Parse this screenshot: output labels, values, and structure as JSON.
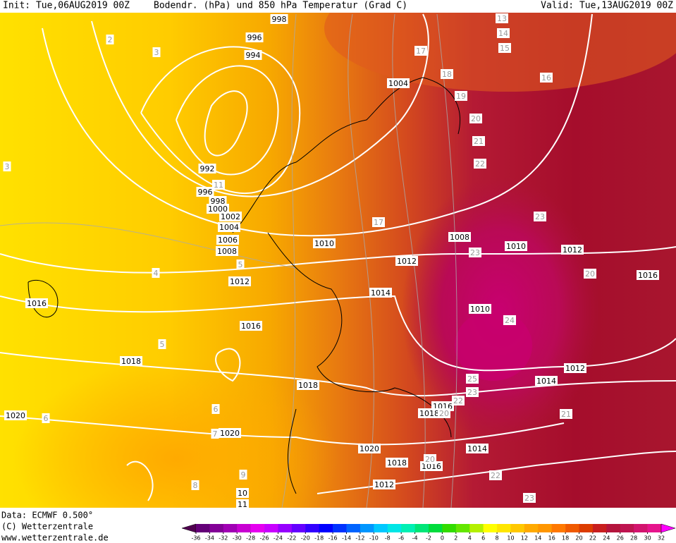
{
  "header": {
    "init": "Init: Tue,06AUG2019 00Z",
    "title": "Bodendr. (hPa) und 850 hPa Temperatur (Grad C)",
    "valid": "Valid: Tue,13AUG2019 00Z"
  },
  "isobar_labels": [
    998,
    996,
    994,
    1004,
    992,
    996,
    998,
    1000,
    1002,
    1004,
    1006,
    1008,
    1010,
    1012,
    1012,
    1014,
    1016,
    1016,
    1018,
    1018,
    1020,
    1020,
    1008,
    1010,
    1012,
    1016,
    1010,
    1012,
    1014,
    1016,
    1018,
    1020,
    1018,
    1016,
    1014,
    1012,
    10,
    11
  ],
  "temperature_labels": [
    2,
    3,
    3,
    4,
    5,
    5,
    6,
    6,
    7,
    8,
    9,
    13,
    14,
    15,
    16,
    17,
    18,
    19,
    20,
    21,
    22,
    23,
    23,
    20,
    24,
    25,
    23,
    22,
    20,
    20,
    21,
    22,
    23,
    17,
    11
  ],
  "footer": {
    "data": "Data: ECMWF  0.500°",
    "copyright": "(C) Wetterzentrale",
    "url": "www.wetterzentrale.de"
  },
  "colorbar": {
    "ticks": [
      -36,
      -34,
      -32,
      -30,
      -28,
      -26,
      -24,
      -22,
      -20,
      -18,
      -16,
      -14,
      -12,
      -10,
      -8,
      -6,
      -4,
      -2,
      0,
      2,
      4,
      6,
      8,
      10,
      12,
      14,
      16,
      18,
      20,
      22,
      24,
      26,
      28,
      30,
      32
    ],
    "colors": [
      "#500050",
      "#640078",
      "#820096",
      "#a000b4",
      "#c800d2",
      "#e600f0",
      "#c800ff",
      "#9600ff",
      "#6400ff",
      "#3200ff",
      "#0000ff",
      "#0032ff",
      "#0064ff",
      "#0096ff",
      "#00c8ff",
      "#00e6e6",
      "#00f0b4",
      "#00e678",
      "#00dc3c",
      "#32dc00",
      "#64e600",
      "#b4f000",
      "#ffff00",
      "#ffe600",
      "#ffc800",
      "#ffaa00",
      "#ff9600",
      "#ff7800",
      "#f05a00",
      "#dc3c00",
      "#c81e1e",
      "#b4143c",
      "#be1450",
      "#d2146e",
      "#e6148c",
      "#ff00ff"
    ]
  }
}
